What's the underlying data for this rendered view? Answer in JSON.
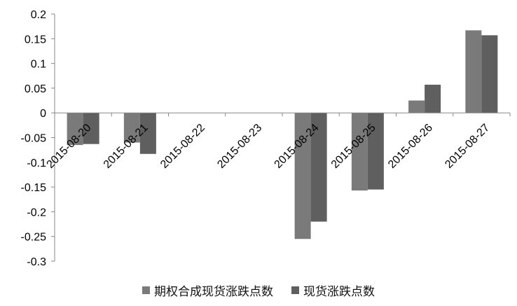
{
  "chart_data": {
    "type": "bar",
    "categories": [
      "2015-08-20",
      "2015-08-21",
      "2015-08-22",
      "2015-08-23",
      "2015-08-24",
      "2015-08-25",
      "2015-08-26",
      "2015-08-27"
    ],
    "series": [
      {
        "name": "期权合成现货涨跌点数",
        "color": "#7a7a7a",
        "values": [
          -0.065,
          -0.06,
          0,
          0,
          -0.255,
          -0.157,
          0.025,
          0.167
        ]
      },
      {
        "name": "现货涨跌点数",
        "color": "#5f5f5f",
        "values": [
          -0.063,
          -0.083,
          0,
          0,
          -0.22,
          -0.155,
          0.057,
          0.157
        ]
      }
    ],
    "ylim": [
      -0.3,
      0.2
    ],
    "yticks": [
      0.2,
      0.15,
      0.1,
      0.05,
      0,
      -0.05,
      -0.1,
      -0.15,
      -0.2,
      -0.25,
      -0.3
    ],
    "ytick_labels": [
      "0.2",
      "0.15",
      "0.1",
      "0.05",
      "0",
      "-0.05",
      "-0.1",
      "-0.15",
      "-0.2",
      "-0.25",
      "-0.3"
    ],
    "grid": false,
    "legend_position": "bottom"
  }
}
